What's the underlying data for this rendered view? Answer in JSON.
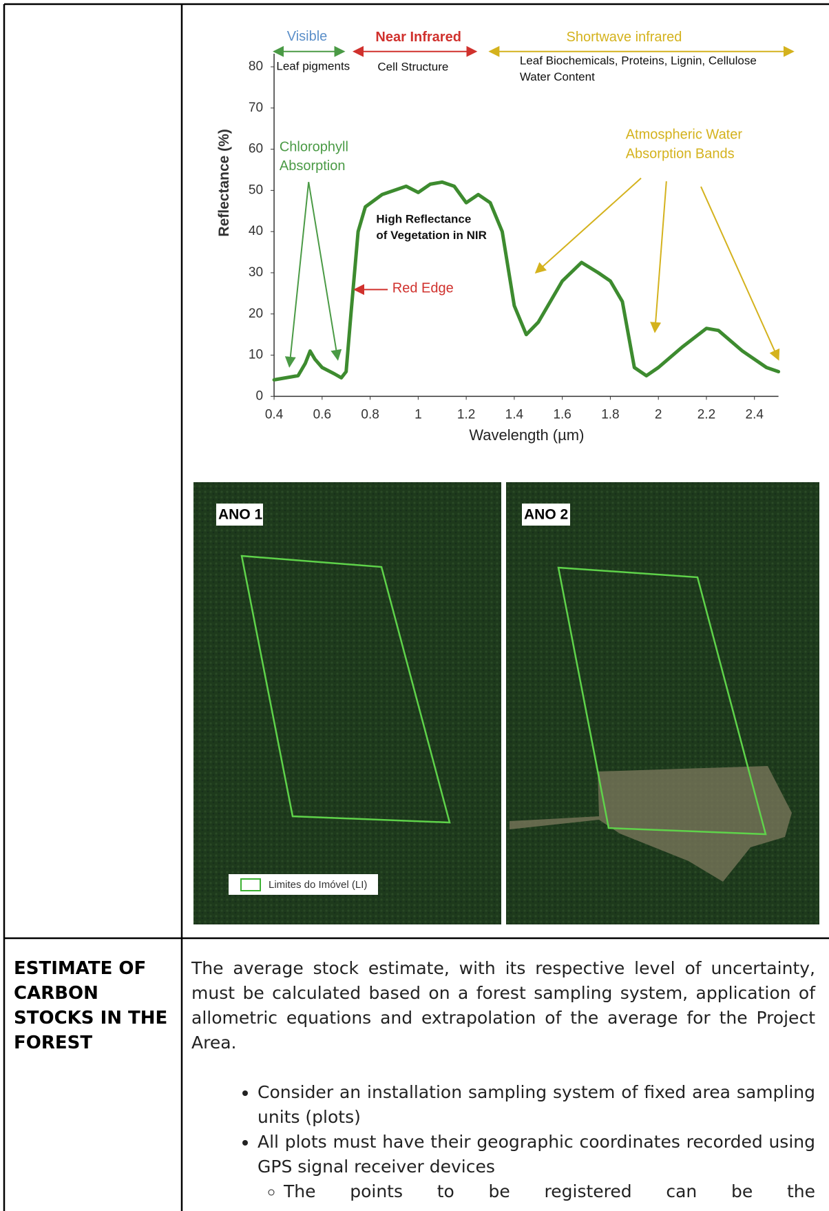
{
  "chart_data": {
    "type": "line",
    "x": [
      0.4,
      0.45,
      0.5,
      0.53,
      0.55,
      0.57,
      0.6,
      0.65,
      0.68,
      0.7,
      0.72,
      0.75,
      0.78,
      0.85,
      0.95,
      1.0,
      1.05,
      1.1,
      1.15,
      1.2,
      1.25,
      1.3,
      1.35,
      1.4,
      1.45,
      1.5,
      1.6,
      1.68,
      1.75,
      1.8,
      1.85,
      1.9,
      1.95,
      2.0,
      2.1,
      2.2,
      2.25,
      2.35,
      2.45,
      2.5
    ],
    "values": [
      4,
      4.5,
      5,
      8,
      11,
      9,
      7,
      5.5,
      4.5,
      6,
      20,
      40,
      46,
      49,
      51,
      49.5,
      51.5,
      52,
      51,
      47,
      49,
      47,
      40,
      22,
      15,
      18,
      28,
      32.5,
      30,
      28,
      23,
      7,
      5,
      7,
      12,
      16.5,
      16,
      11,
      7,
      6
    ],
    "color": "#3d8b2f",
    "xlim": [
      0.4,
      2.5
    ],
    "ylim": [
      0,
      80
    ],
    "xticks": [
      0.4,
      0.6,
      0.8,
      1,
      1.2,
      1.4,
      1.6,
      1.8,
      2,
      2.2,
      2.4
    ],
    "yticks": [
      0,
      10,
      20,
      30,
      40,
      50,
      60,
      70,
      80
    ],
    "xlabel": "Wavelength (µm)",
    "ylabel": "Reflectance (%)",
    "bands": [
      {
        "name": "Visible",
        "color": "#5b8fc9",
        "note": "Leaf pigments"
      },
      {
        "name": "Near Infrared",
        "color": "#d0312d",
        "note": "Cell Structure"
      },
      {
        "name": "Shortwave infrared",
        "color": "#d4b21d",
        "note": "Leaf Biochemicals, Proteins, Lignin, Cellulose",
        "note2": "Water Content"
      }
    ],
    "annotations": {
      "chlorophyll": [
        "Chlorophyll",
        "Absorption"
      ],
      "nir": [
        "High Reflectance",
        "of Vegetation in NIR"
      ],
      "red_edge": "Red Edge",
      "water": [
        "Atmospheric Water",
        "Absorption Bands"
      ]
    }
  },
  "satellite": {
    "left_label": "ANO 1",
    "right_label": "ANO 2",
    "legend": "Limites do Imóvel (LI)"
  },
  "table": {
    "row_label": "ESTIMATE OF CARBON STOCKS IN THE FOREST",
    "paragraph": "The average stock estimate, with its respective level of uncertainty, must be calculated based on a forest sampling system, application of allometric equations and extrapolation of the average for the Project Area.",
    "bullets": [
      "Consider an installation sampling system of fixed area sampling units (plots)",
      "All plots must have their geographic coordinates recorded using GPS signal receiver devices"
    ],
    "sub_bullets": [
      "The points to be registered can be the"
    ]
  }
}
